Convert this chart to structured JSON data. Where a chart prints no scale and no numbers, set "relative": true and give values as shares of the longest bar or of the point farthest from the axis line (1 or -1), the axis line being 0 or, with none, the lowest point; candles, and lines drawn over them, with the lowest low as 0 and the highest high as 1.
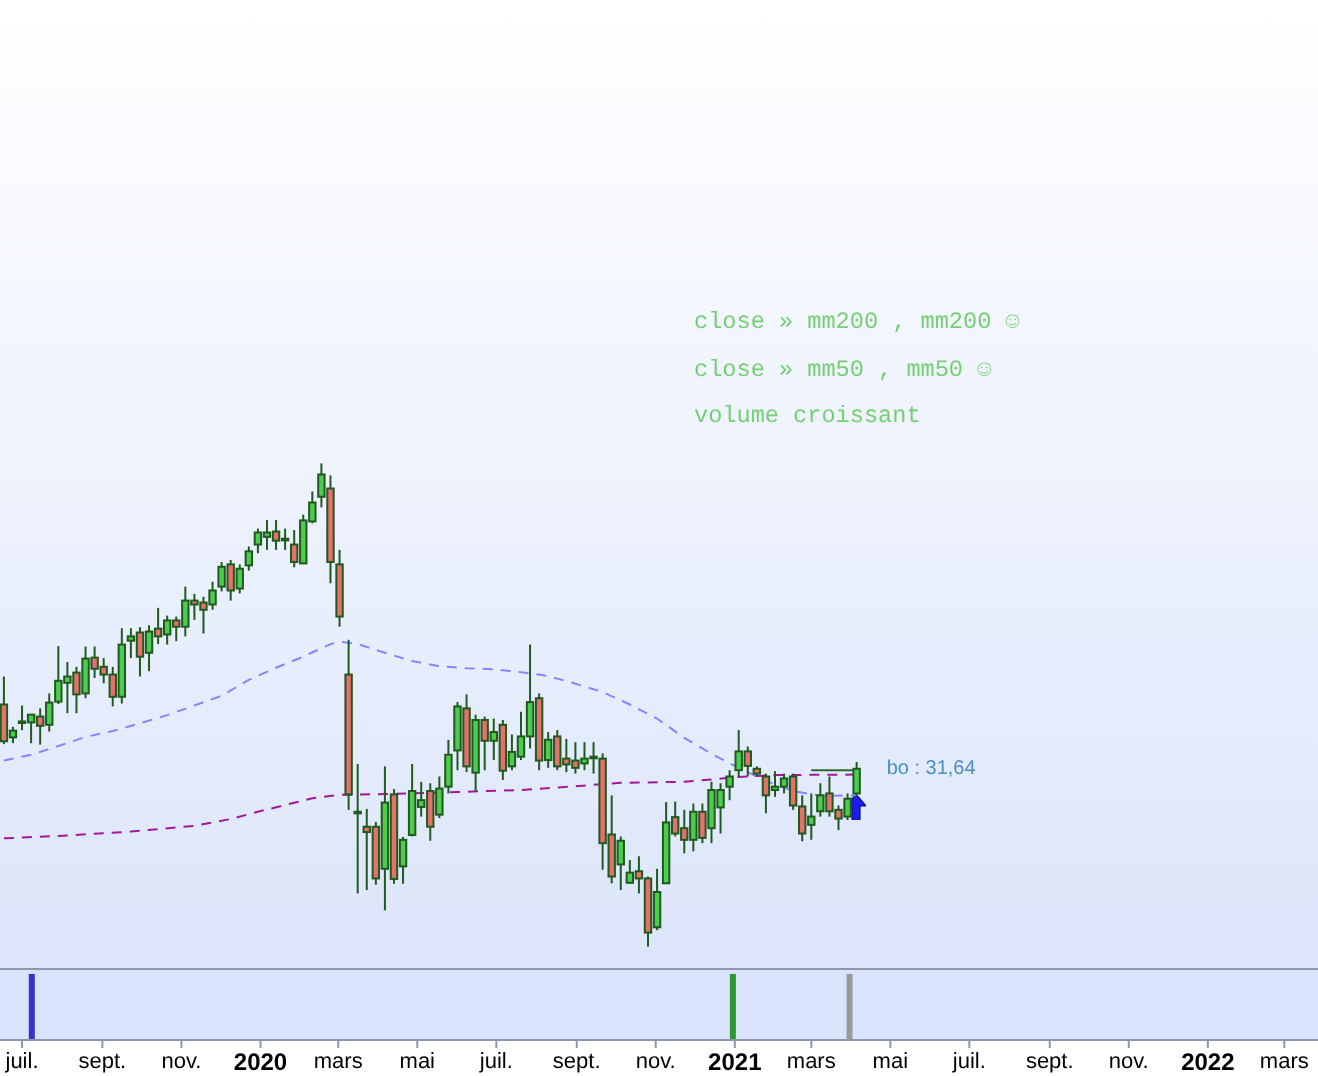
{
  "chart_data": [
    {
      "type": "candlestick",
      "relative": true,
      "tick_labels": false,
      "x": [
        "2019-06-17",
        "2019-06-24",
        "2019-07-01",
        "2019-07-08",
        "2019-07-15",
        "2019-07-22",
        "2019-07-29",
        "2019-08-05",
        "2019-08-12",
        "2019-08-19",
        "2019-08-26",
        "2019-09-02",
        "2019-09-09",
        "2019-09-16",
        "2019-09-23",
        "2019-09-30",
        "2019-10-07",
        "2019-10-14",
        "2019-10-21",
        "2019-10-28",
        "2019-11-04",
        "2019-11-11",
        "2019-11-18",
        "2019-11-25",
        "2019-12-02",
        "2019-12-09",
        "2019-12-16",
        "2019-12-23",
        "2019-12-30",
        "2020-01-06",
        "2020-01-13",
        "2020-01-20",
        "2020-01-27",
        "2020-02-03",
        "2020-02-10",
        "2020-02-17",
        "2020-02-24",
        "2020-03-02",
        "2020-03-09",
        "2020-03-16",
        "2020-03-23",
        "2020-03-30",
        "2020-04-06",
        "2020-04-13",
        "2020-04-20",
        "2020-04-27",
        "2020-05-04",
        "2020-05-11",
        "2020-05-18",
        "2020-05-25",
        "2020-06-01",
        "2020-06-08",
        "2020-06-15",
        "2020-06-22",
        "2020-06-29",
        "2020-07-06",
        "2020-07-13",
        "2020-07-20",
        "2020-07-27",
        "2020-08-03",
        "2020-08-10",
        "2020-08-17",
        "2020-08-24",
        "2020-08-31",
        "2020-09-07",
        "2020-09-14",
        "2020-09-21",
        "2020-09-28",
        "2020-10-05",
        "2020-10-12",
        "2020-10-19",
        "2020-10-26",
        "2020-11-02",
        "2020-11-09",
        "2020-11-16",
        "2020-11-23",
        "2020-11-30",
        "2020-12-07",
        "2020-12-14",
        "2020-12-21",
        "2020-12-28",
        "2021-01-04",
        "2021-01-11",
        "2021-01-18",
        "2021-01-25",
        "2021-02-01",
        "2021-02-08",
        "2021-02-15",
        "2021-02-22",
        "2021-03-01",
        "2021-03-08",
        "2021-03-15",
        "2021-03-22",
        "2021-03-29",
        "2021-04-05"
      ],
      "ohlc": [
        [
          0.501,
          0.559,
          0.419,
          0.425
        ],
        [
          0.433,
          0.455,
          0.421,
          0.447
        ],
        [
          0.466,
          0.499,
          0.448,
          0.466
        ],
        [
          0.464,
          0.48,
          0.421,
          0.48
        ],
        [
          0.476,
          0.493,
          0.418,
          0.457
        ],
        [
          0.459,
          0.524,
          0.445,
          0.505
        ],
        [
          0.507,
          0.622,
          0.502,
          0.55
        ],
        [
          0.546,
          0.589,
          0.483,
          0.559
        ],
        [
          0.567,
          0.579,
          0.483,
          0.522
        ],
        [
          0.524,
          0.621,
          0.514,
          0.596
        ],
        [
          0.598,
          0.621,
          0.556,
          0.575
        ],
        [
          0.579,
          0.597,
          0.545,
          0.563
        ],
        [
          0.563,
          0.579,
          0.497,
          0.517
        ],
        [
          0.517,
          0.659,
          0.503,
          0.625
        ],
        [
          0.633,
          0.659,
          0.597,
          0.642
        ],
        [
          0.65,
          0.661,
          0.559,
          0.6
        ],
        [
          0.608,
          0.665,
          0.57,
          0.652
        ],
        [
          0.658,
          0.701,
          0.626,
          0.642
        ],
        [
          0.646,
          0.685,
          0.625,
          0.675
        ],
        [
          0.675,
          0.683,
          0.632,
          0.662
        ],
        [
          0.662,
          0.745,
          0.642,
          0.716
        ],
        [
          0.716,
          0.73,
          0.676,
          0.708
        ],
        [
          0.712,
          0.724,
          0.648,
          0.697
        ],
        [
          0.708,
          0.755,
          0.697,
          0.737
        ],
        [
          0.745,
          0.796,
          0.735,
          0.786
        ],
        [
          0.791,
          0.8,
          0.716,
          0.737
        ],
        [
          0.741,
          0.791,
          0.731,
          0.782
        ],
        [
          0.789,
          0.828,
          0.778,
          0.818
        ],
        [
          0.832,
          0.865,
          0.814,
          0.857
        ],
        [
          0.848,
          0.883,
          0.821,
          0.857
        ],
        [
          0.859,
          0.883,
          0.821,
          0.84
        ],
        [
          0.844,
          0.865,
          0.821,
          0.844
        ],
        [
          0.832,
          0.862,
          0.785,
          0.796
        ],
        [
          0.793,
          0.894,
          0.793,
          0.882
        ],
        [
          0.88,
          0.942,
          0.876,
          0.919
        ],
        [
          0.931,
          1,
          0.909,
          0.977
        ],
        [
          0.948,
          0.975,
          0.752,
          0.796
        ],
        [
          0.791,
          0.821,
          0.662,
          0.683
        ],
        [
          0.563,
          0.635,
          0.283,
          0.315
        ],
        [
          0.279,
          0.378,
          0.11,
          0.279
        ],
        [
          0.248,
          0.285,
          0.117,
          0.237
        ],
        [
          0.248,
          0.258,
          0.128,
          0.141
        ],
        [
          0.161,
          0.373,
          0.075,
          0.298
        ],
        [
          0.315,
          0.326,
          0.13,
          0.14
        ],
        [
          0.166,
          0.227,
          0.13,
          0.221
        ],
        [
          0.231,
          0.378,
          0.228,
          0.322
        ],
        [
          0.289,
          0.341,
          0.269,
          0.303
        ],
        [
          0.322,
          0.338,
          0.219,
          0.248
        ],
        [
          0.273,
          0.352,
          0.266,
          0.327
        ],
        [
          0.331,
          0.428,
          0.317,
          0.397
        ],
        [
          0.406,
          0.506,
          0.365,
          0.497
        ],
        [
          0.493,
          0.522,
          0.361,
          0.373
        ],
        [
          0.36,
          0.48,
          0.32,
          0.469
        ],
        [
          0.469,
          0.476,
          0.365,
          0.426
        ],
        [
          0.426,
          0.472,
          0.386,
          0.444
        ],
        [
          0.459,
          0.469,
          0.345,
          0.364
        ],
        [
          0.373,
          0.439,
          0.365,
          0.403
        ],
        [
          0.393,
          0.486,
          0.386,
          0.435
        ],
        [
          0.435,
          0.625,
          0.41,
          0.506
        ],
        [
          0.514,
          0.524,
          0.365,
          0.385
        ],
        [
          0.386,
          0.444,
          0.37,
          0.428
        ],
        [
          0.435,
          0.448,
          0.365,
          0.373
        ],
        [
          0.389,
          0.43,
          0.361,
          0.377
        ],
        [
          0.385,
          0.423,
          0.358,
          0.37
        ],
        [
          0.379,
          0.423,
          0.365,
          0.389
        ],
        [
          0.393,
          0.423,
          0.358,
          0.393
        ],
        [
          0.389,
          0.4,
          0.159,
          0.214
        ],
        [
          0.232,
          0.313,
          0.131,
          0.145
        ],
        [
          0.17,
          0.228,
          0.117,
          0.219
        ],
        [
          0.132,
          0.179,
          0.131,
          0.153
        ],
        [
          0.156,
          0.187,
          0.11,
          0.141
        ],
        [
          0.141,
          0.145,
          0,
          0.029
        ],
        [
          0.04,
          0.161,
          0.034,
          0.113
        ],
        [
          0.131,
          0.299,
          0.131,
          0.257
        ],
        [
          0.268,
          0.3,
          0.228,
          0.234
        ],
        [
          0.245,
          0.283,
          0.193,
          0.221
        ],
        [
          0.221,
          0.296,
          0.197,
          0.279
        ],
        [
          0.279,
          0.296,
          0.214,
          0.225
        ],
        [
          0.245,
          0.341,
          0.214,
          0.324
        ],
        [
          0.288,
          0.338,
          0.234,
          0.324
        ],
        [
          0.331,
          0.365,
          0.303,
          0.352
        ],
        [
          0.365,
          0.448,
          0.352,
          0.404
        ],
        [
          0.404,
          0.414,
          0.352,
          0.374
        ],
        [
          0.368,
          0.373,
          0.352,
          0.358
        ],
        [
          0.352,
          0.358,
          0.276,
          0.313
        ],
        [
          0.324,
          0.363,
          0.31,
          0.331
        ],
        [
          0.331,
          0.358,
          0.317,
          0.348
        ],
        [
          0.352,
          0.358,
          0.283,
          0.292
        ],
        [
          0.29,
          0.313,
          0.218,
          0.234
        ],
        [
          0.252,
          0.317,
          0.221,
          0.269
        ],
        [
          0.28,
          0.338,
          0.269,
          0.313
        ],
        [
          0.317,
          0.352,
          0.269,
          0.28
        ],
        [
          0.283,
          0.292,
          0.241,
          0.265
        ],
        [
          0.269,
          0.317,
          0.262,
          0.306
        ],
        [
          0.317,
          0.382,
          0.31,
          0.368
        ]
      ],
      "colors": [
        "#e6706a",
        "#4dcc4d",
        "#4dcc4d",
        "#4dcc4d",
        "#e6706a",
        "#4dcc4d",
        "#4dcc4d",
        "#4dcc4d",
        "#e6706a",
        "#4dcc4d",
        "#e6706a",
        "#e6706a",
        "#e6706a",
        "#4dcc4d",
        "#4dcc4d",
        "#e6706a",
        "#4dcc4d",
        "#e6706a",
        "#4dcc4d",
        "#e6706a",
        "#4dcc4d",
        "#e6706a",
        "#e6706a",
        "#4dcc4d",
        "#4dcc4d",
        "#e6706a",
        "#4dcc4d",
        "#4dcc4d",
        "#4dcc4d",
        "#4dcc4d",
        "#e6706a",
        "#4dcc4d",
        "#e6706a",
        "#4dcc4d",
        "#4dcc4d",
        "#4dcc4d",
        "#e6706a",
        "#e6706a",
        "#e6706a",
        "#4dcc4d",
        "#e6706a",
        "#e6706a",
        "#4dcc4d",
        "#e6706a",
        "#4dcc4d",
        "#4dcc4d",
        "#4dcc4d",
        "#e6706a",
        "#4dcc4d",
        "#4dcc4d",
        "#4dcc4d",
        "#e6706a",
        "#4dcc4d",
        "#e6706a",
        "#4dcc4d",
        "#e6706a",
        "#4dcc4d",
        "#4dcc4d",
        "#4dcc4d",
        "#e6706a",
        "#4dcc4d",
        "#e6706a",
        "#e6706a",
        "#e6706a",
        "#4dcc4d",
        "#4dcc4d",
        "#e6706a",
        "#e6706a",
        "#4dcc4d",
        "#4dcc4d",
        "#e6706a",
        "#e6706a",
        "#4dcc4d",
        "#4dcc4d",
        "#e6706a",
        "#e6706a",
        "#4dcc4d",
        "#e6706a",
        "#4dcc4d",
        "#4dcc4d",
        "#4dcc4d",
        "#4dcc4d",
        "#e6706a",
        "#e6706a",
        "#e6706a",
        "#4dcc4d",
        "#4dcc4d",
        "#e6706a",
        "#e6706a",
        "#4dcc4d",
        "#4dcc4d",
        "#e6706a",
        "#e6706a",
        "#4dcc4d",
        "#4dcc4d"
      ],
      "series": [
        {
          "type": "line",
          "color": "#8585ff",
          "line_style": "dashed",
          "x": [
            "2019-06-17",
            "2019-07-08",
            "2019-07-29",
            "2019-08-19",
            "2019-09-09",
            "2019-09-30",
            "2019-10-21",
            "2019-11-11",
            "2019-12-02",
            "2019-12-23",
            "2020-01-13",
            "2020-02-03",
            "2020-02-24",
            "2020-03-02",
            "2020-03-16",
            "2020-04-06",
            "2020-04-27",
            "2020-05-18",
            "2020-06-08",
            "2020-06-29",
            "2020-07-20",
            "2020-08-10",
            "2020-08-31",
            "2020-09-21",
            "2020-10-12",
            "2020-11-02",
            "2020-11-23",
            "2020-12-14",
            "2021-01-04",
            "2021-01-25",
            "2021-02-15",
            "2021-03-08",
            "2021-04-05"
          ],
          "values": [
            0.385,
            0.397,
            0.415,
            0.434,
            0.446,
            0.462,
            0.479,
            0.499,
            0.519,
            0.552,
            0.577,
            0.6,
            0.626,
            0.631,
            0.626,
            0.608,
            0.591,
            0.58,
            0.576,
            0.574,
            0.568,
            0.56,
            0.544,
            0.527,
            0.501,
            0.472,
            0.432,
            0.399,
            0.37,
            0.343,
            0.322,
            0.312,
            0.313
          ]
        },
        {
          "type": "line",
          "color": "#a0189c",
          "line_style": "dashed",
          "x": [
            "2019-06-17",
            "2019-08-05",
            "2019-09-23",
            "2019-11-11",
            "2019-12-09",
            "2019-12-30",
            "2020-01-20",
            "2020-02-10",
            "2020-03-02",
            "2020-04-13",
            "2020-06-01",
            "2020-07-20",
            "2020-08-31",
            "2020-10-05",
            "2020-11-23",
            "2021-01-04",
            "2021-02-01",
            "2021-04-05"
          ],
          "values": [
            0.224,
            0.23,
            0.238,
            0.25,
            0.264,
            0.279,
            0.293,
            0.307,
            0.314,
            0.316,
            0.32,
            0.324,
            0.332,
            0.339,
            0.341,
            0.351,
            0.355,
            0.356
          ]
        },
        {
          "type": "line",
          "color": "#2d6b2d",
          "x": [
            "2021-03-01",
            "2021-04-05"
          ],
          "values": [
            0.365,
            0.365
          ]
        }
      ],
      "annotations": [
        "close » mm200 , mm200 ☺",
        "close » mm50 , mm50 ☺",
        "volume croissant",
        {
          "text": "bo : 31,64",
          "x": "2021-04-05",
          "y": 0.365
        }
      ],
      "xlim": [
        "2019-06-14",
        "2022-03-27"
      ]
    },
    {
      "type": "bar",
      "relative": true,
      "x": [
        "2019-07-08",
        "2020-12-30",
        "2021-03-30"
      ],
      "values": [
        1,
        1,
        1
      ],
      "colors": [
        "#3535c8",
        "#2e9a2e",
        "#9a9a9a"
      ],
      "xlim": [
        "2019-06-14",
        "2022-03-27"
      ],
      "xticks": [
        {
          "value": "2019-07-01",
          "label": "juil."
        },
        {
          "value": "2019-09-01",
          "label": "sept."
        },
        {
          "value": "2019-11-01",
          "label": "nov."
        },
        {
          "value": "2020-01-01",
          "label": "2020"
        },
        {
          "value": "2020-03-01",
          "label": "mars"
        },
        {
          "value": "2020-05-01",
          "label": "mai"
        },
        {
          "value": "2020-07-01",
          "label": "juil."
        },
        {
          "value": "2020-09-01",
          "label": "sept."
        },
        {
          "value": "2020-11-01",
          "label": "nov."
        },
        {
          "value": "2021-01-01",
          "label": "2021"
        },
        {
          "value": "2021-03-01",
          "label": "mars"
        },
        {
          "value": "2021-05-01",
          "label": "mai"
        },
        {
          "value": "2021-07-01",
          "label": "juil."
        },
        {
          "value": "2021-09-01",
          "label": "sept."
        },
        {
          "value": "2021-11-01",
          "label": "nov."
        },
        {
          "value": "2022-01-01",
          "label": "2022"
        },
        {
          "value": "2022-03-01",
          "label": "mars"
        }
      ]
    }
  ]
}
